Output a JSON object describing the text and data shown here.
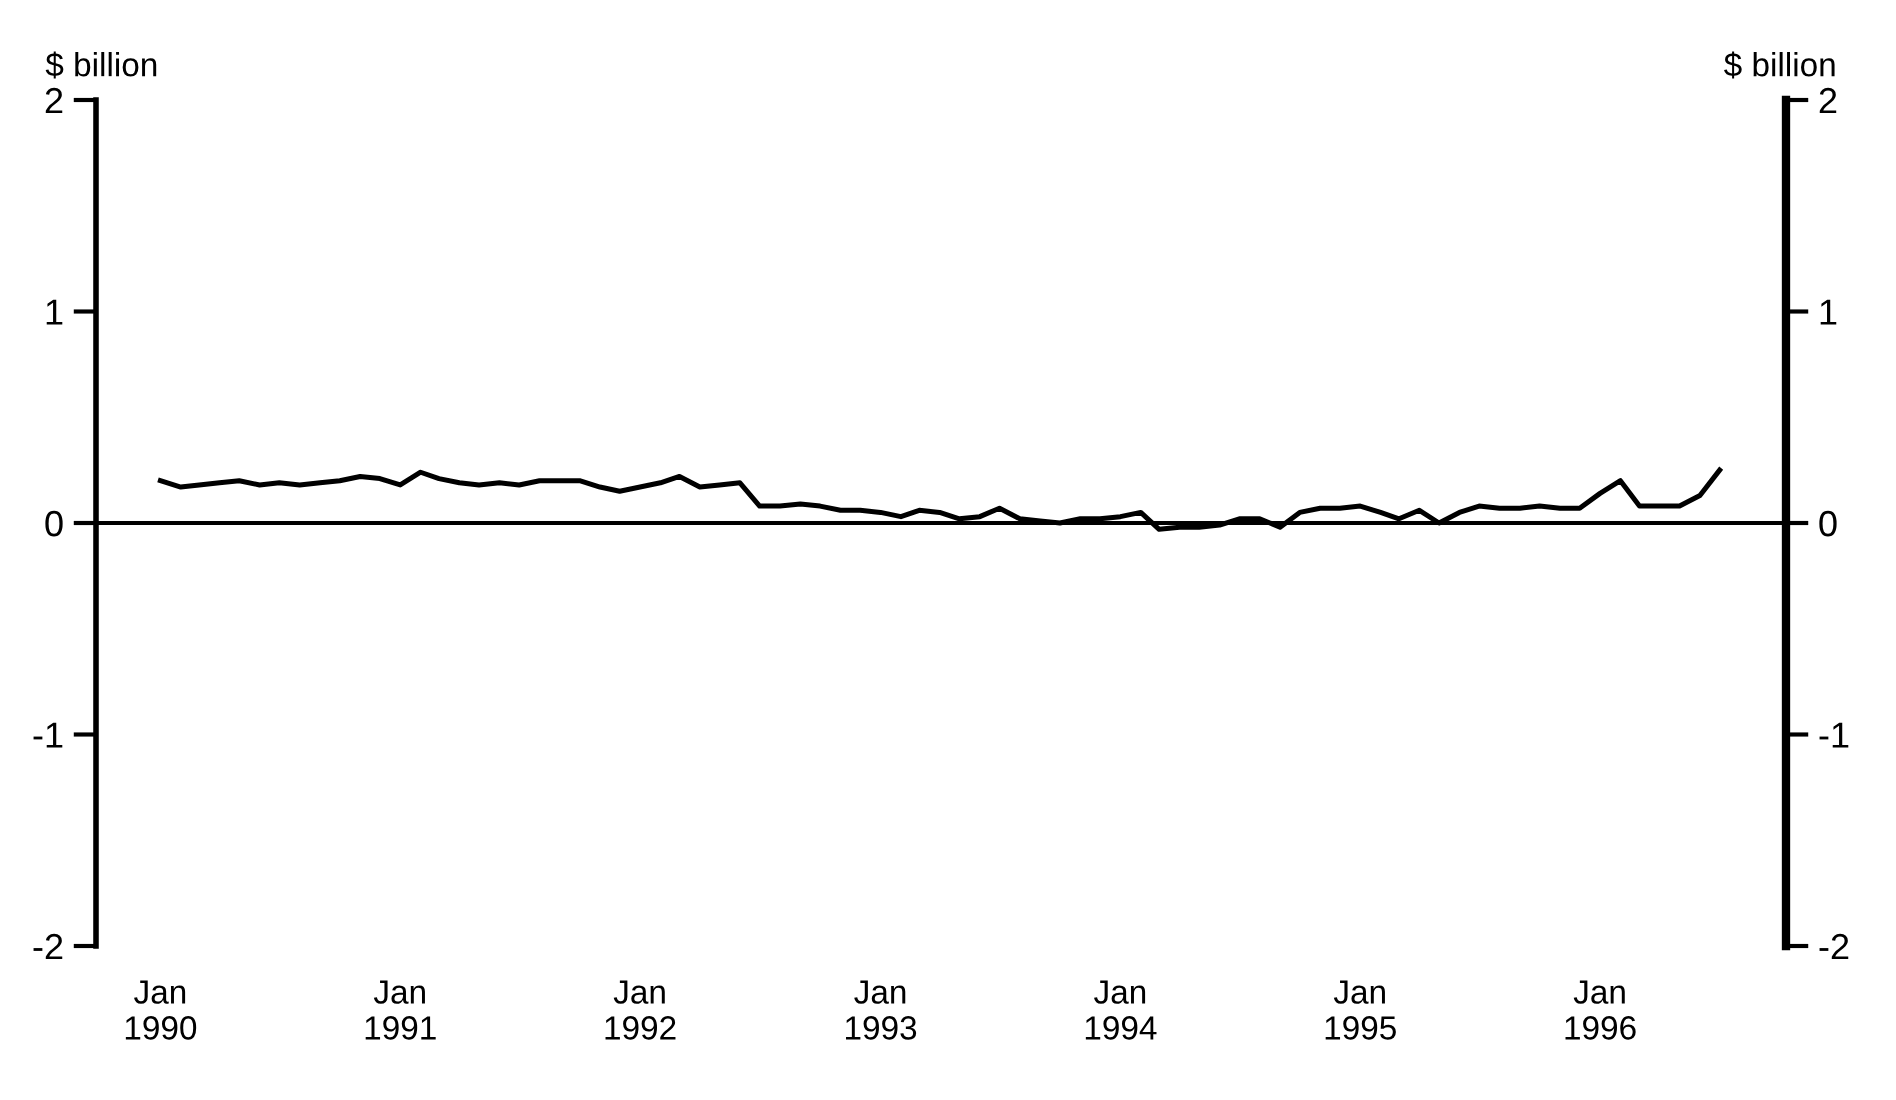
{
  "chart_data": {
    "type": "line",
    "ylabel": "$ billion",
    "y2label": "$ billion",
    "x": [
      "1990-01",
      "1990-02",
      "1990-03",
      "1990-04",
      "1990-05",
      "1990-06",
      "1990-07",
      "1990-08",
      "1990-09",
      "1990-10",
      "1990-11",
      "1990-12",
      "1991-01",
      "1991-02",
      "1991-03",
      "1991-04",
      "1991-05",
      "1991-06",
      "1991-07",
      "1991-08",
      "1991-09",
      "1991-10",
      "1991-11",
      "1991-12",
      "1992-01",
      "1992-02",
      "1992-03",
      "1992-04",
      "1992-05",
      "1992-06",
      "1992-07",
      "1992-08",
      "1992-09",
      "1992-10",
      "1992-11",
      "1992-12",
      "1993-01",
      "1993-02",
      "1993-03",
      "1993-04",
      "1993-05",
      "1993-06",
      "1993-07",
      "1993-08",
      "1993-09",
      "1993-10",
      "1993-11",
      "1993-12",
      "1994-01",
      "1994-02",
      "1994-03",
      "1994-04",
      "1994-05",
      "1994-06",
      "1994-07",
      "1994-08",
      "1994-09",
      "1994-10",
      "1994-11",
      "1994-12",
      "1995-01",
      "1995-02",
      "1995-03",
      "1995-04",
      "1995-05",
      "1995-06",
      "1995-07",
      "1995-08",
      "1995-09",
      "1995-10",
      "1995-11",
      "1995-12",
      "1996-01",
      "1996-02",
      "1996-03",
      "1996-04",
      "1996-05",
      "1996-06",
      "1996-07"
    ],
    "series": [
      {
        "color": "#000000",
        "values": [
          0.2,
          0.17,
          0.18,
          0.19,
          0.2,
          0.18,
          0.19,
          0.18,
          0.19,
          0.2,
          0.22,
          0.21,
          0.18,
          0.24,
          0.21,
          0.19,
          0.18,
          0.19,
          0.18,
          0.2,
          0.2,
          0.2,
          0.17,
          0.15,
          0.17,
          0.19,
          0.22,
          0.17,
          0.18,
          0.19,
          0.08,
          0.08,
          0.09,
          0.08,
          0.06,
          0.06,
          0.05,
          0.03,
          0.06,
          0.05,
          0.02,
          0.03,
          0.07,
          0.02,
          0.01,
          0.0,
          0.02,
          0.02,
          0.03,
          0.05,
          -0.03,
          -0.02,
          -0.02,
          -0.01,
          0.02,
          0.02,
          -0.02,
          0.05,
          0.07,
          0.07,
          0.08,
          0.05,
          0.02,
          0.06,
          0.0,
          0.05,
          0.08,
          0.07,
          0.07,
          0.08,
          0.07,
          0.07,
          0.14,
          0.2,
          0.08,
          0.08,
          0.08,
          0.13,
          0.25
        ]
      }
    ],
    "xlim": [
      "1989-09-25",
      "1996-10-10"
    ],
    "xticks": [
      {
        "value": "1990-01",
        "label": "Jan\n1990"
      },
      {
        "value": "1991-01",
        "label": "Jan\n1991"
      },
      {
        "value": "1992-01",
        "label": "Jan\n1992"
      },
      {
        "value": "1993-01",
        "label": "Jan\n1993"
      },
      {
        "value": "1994-01",
        "label": "Jan\n1994"
      },
      {
        "value": "1995-01",
        "label": "Jan\n1995"
      },
      {
        "value": "1996-01",
        "label": "Jan\n1996"
      }
    ],
    "ylim": [
      -2,
      2
    ],
    "yticks": [
      -2,
      -1,
      0,
      1,
      2
    ],
    "y2lim": [
      -2,
      2
    ],
    "y2ticks": [
      -2,
      -1,
      0,
      1,
      2
    ],
    "ref_lines": [
      {
        "axis": "y",
        "value": 0,
        "color": "#000000"
      }
    ],
    "grid": false,
    "legend": false,
    "line_style": "solid",
    "marker": "none"
  }
}
